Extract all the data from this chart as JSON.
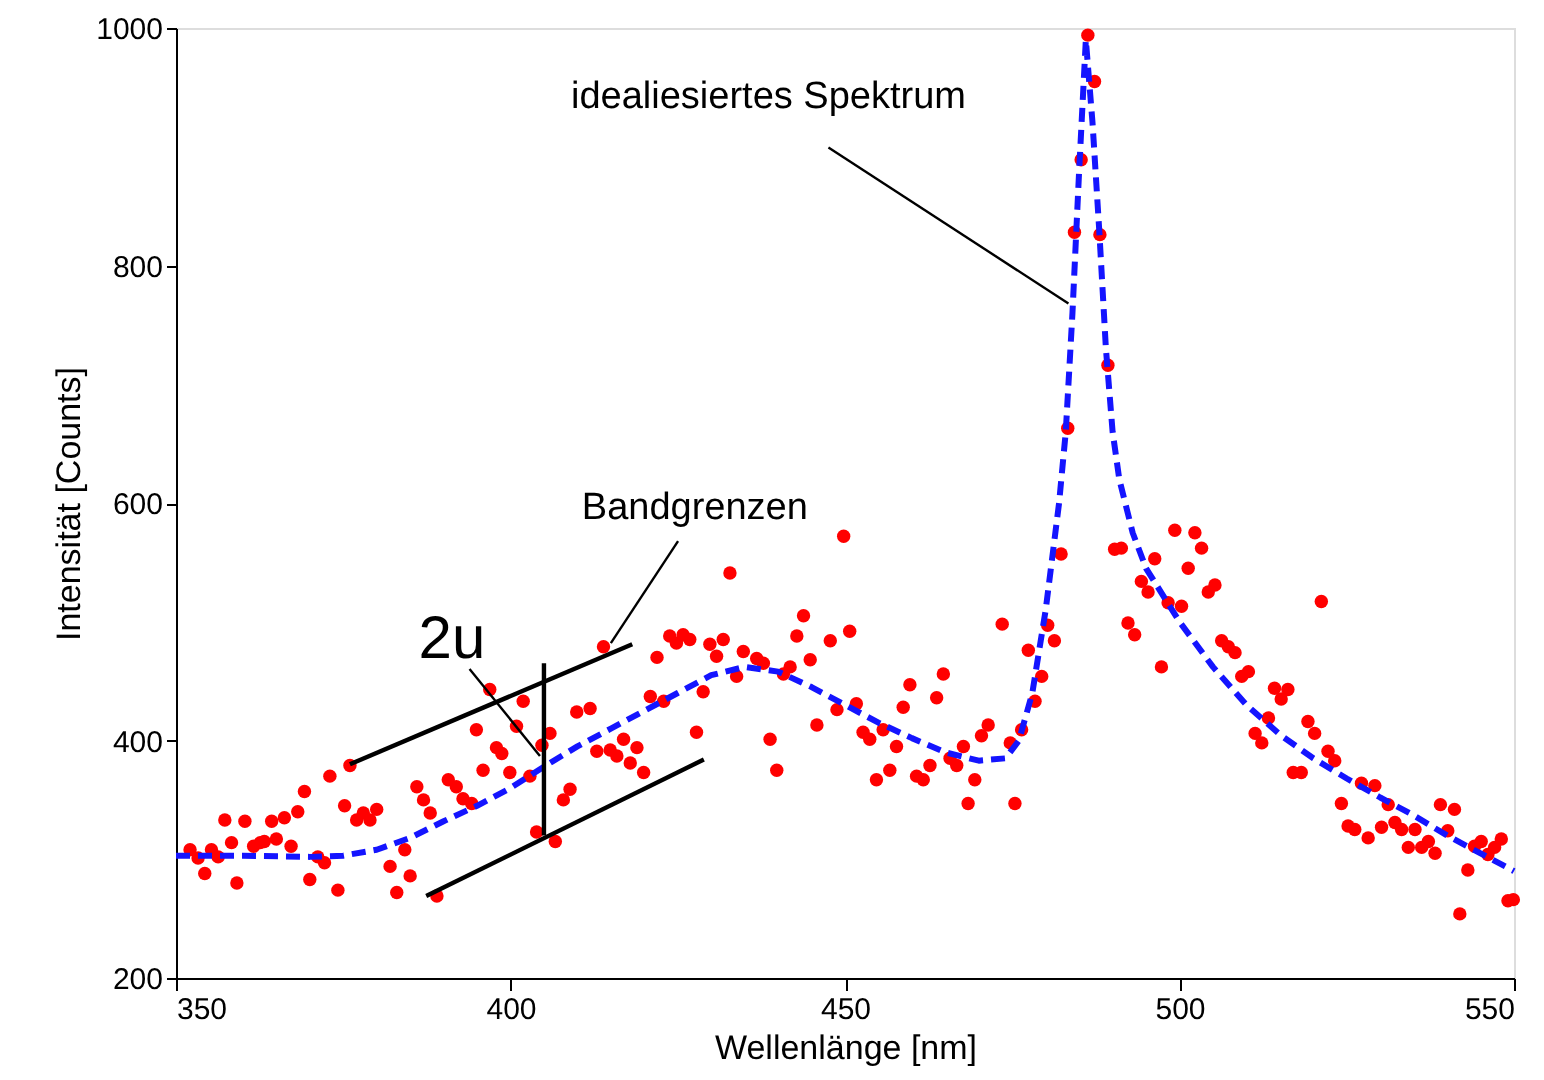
{
  "chart_data": {
    "type": "scatter",
    "xlabel": "Wellenlänge [nm]",
    "ylabel": "Intensität [Counts]",
    "xlim": [
      350,
      550
    ],
    "ylim": [
      200,
      1000
    ],
    "xticks": [
      350,
      400,
      450,
      500,
      550
    ],
    "yticks": [
      200,
      400,
      600,
      800,
      1000
    ],
    "series": [
      {
        "color": "#ff0000",
        "marker": "circle",
        "x": [
          352.1,
          353.3,
          354.3,
          355.3,
          356.3,
          357.3,
          358.3,
          359.1,
          360.3,
          361.6,
          362.6,
          363.2,
          364.3,
          365.0,
          366.2,
          367.2,
          368.2,
          369.2,
          370.0,
          371.2,
          372.2,
          373.0,
          374.2,
          375.2,
          376.0,
          377.0,
          378.0,
          379.0,
          380.0,
          382.0,
          383.0,
          384.2,
          385.0,
          386.0,
          387.0,
          388.0,
          389.0,
          390.7,
          391.9,
          392.9,
          394.2,
          394.9,
          395.9,
          396.9,
          397.9,
          398.7,
          399.9,
          400.9,
          401.9,
          402.9,
          403.9,
          404.7,
          405.9,
          406.7,
          407.9,
          408.9,
          409.9,
          411.9,
          412.9,
          413.9,
          414.9,
          415.9,
          416.9,
          417.9,
          418.9,
          419.9,
          420.9,
          421.9,
          422.9,
          423.8,
          424.8,
          425.8,
          426.8,
          427.8,
          428.8,
          429.8,
          430.8,
          431.8,
          432.8,
          433.8,
          434.8,
          436.8,
          437.8,
          438.8,
          439.8,
          440.8,
          441.8,
          442.8,
          443.8,
          444.8,
          445.8,
          447.8,
          448.8,
          449.8,
          450.7,
          451.7,
          452.7,
          453.7,
          454.7,
          455.7,
          456.7,
          457.7,
          458.7,
          459.7,
          460.7,
          461.7,
          462.7,
          463.7,
          464.7,
          465.7,
          466.7,
          467.7,
          468.4,
          469.4,
          470.4,
          471.4,
          473.5,
          474.7,
          475.4,
          476.4,
          477.4,
          478.4,
          479.4,
          480.3,
          481.3,
          482.3,
          483.3,
          484.3,
          485.3,
          486.3,
          487.3,
          488.1,
          489.3,
          490.3,
          491.3,
          492.3,
          493.3,
          494.3,
          495.3,
          496.3,
          497.3,
          498.3,
          499.3,
          500.3,
          501.3,
          502.3,
          503.3,
          504.3,
          505.3,
          506.3,
          507.3,
          508.3,
          509.3,
          510.3,
          511.3,
          512.3,
          513.3,
          514.2,
          515.2,
          516.2,
          517.0,
          518.2,
          519.2,
          520.2,
          521.2,
          522.2,
          523.2,
          524.2,
          525.2,
          526.2,
          527.2,
          528.2,
          529.2,
          530.2,
          531.2,
          532.2,
          533.2,
          534.2,
          535.2,
          536.2,
          537.2,
          538.2,
          539.0,
          540.1,
          541.1,
          541.9,
          543.1,
          544.1,
          545.1,
          546.1,
          547.1,
          548.1,
          549.1,
          549.9
        ],
        "values": [
          308,
          301,
          288,
          308,
          302,
          333,
          314,
          280,
          332,
          311,
          314,
          315,
          332,
          317,
          335,
          311,
          340,
          357,
          283,
          302,
          297,
          370,
          274,
          345,
          379,
          333,
          339,
          333,
          342,
          294,
          272,
          308,
          286,
          361,
          350,
          339,
          269,
          367,
          361,
          351,
          347,
          409,
          375,
          443,
          394,
          389,
          373,
          412,
          433,
          370,
          323,
          396,
          406,
          315,
          350,
          359,
          424,
          427,
          391,
          479,
          392,
          387,
          401,
          381,
          394,
          373,
          437,
          470,
          433,
          488,
          482,
          489,
          485,
          407,
          441,
          481,
          471,
          485,
          541,
          454,
          475,
          469,
          465,
          401,
          375,
          456,
          462,
          488,
          505,
          468,
          413,
          484,
          426,
          572,
          492,
          431,
          407,
          401,
          367,
          409,
          375,
          395,
          428,
          447,
          370,
          367,
          379,
          436,
          456,
          385,
          379,
          395,
          347,
          367,
          404,
          413,
          498,
          398,
          347,
          409,
          476,
          433,
          454,
          497,
          484,
          557,
          663,
          828,
          889,
          994,
          955,
          826,
          716,
          561,
          562,
          499,
          489,
          534,
          525,
          553,
          462,
          516,
          577,
          513,
          545,
          575,
          562,
          525,
          531,
          484,
          479,
          474,
          454,
          458,
          406,
          398,
          419,
          444,
          435,
          443,
          373,
          373,
          416,
          406,
          517,
          391,
          383,
          347,
          328,
          325,
          364,
          318,
          362,
          327,
          346,
          331,
          325,
          310,
          325,
          310,
          315,
          305,
          346,
          324,
          342,
          254,
          291,
          311,
          315,
          304,
          310,
          317,
          265,
          266
        ]
      },
      {
        "type": "line",
        "color": "#1414ff",
        "line_style": "dashed",
        "marker": "none",
        "x": [
          350,
          360,
          370,
          375,
          380,
          385,
          390,
          395,
          400,
          405,
          410,
          415,
          420,
          425,
          430,
          435,
          440,
          445,
          450,
          455,
          460,
          465,
          470,
          474,
          476,
          478,
          480,
          482,
          483,
          484,
          485,
          486,
          487,
          488,
          489,
          490,
          491,
          493,
          495,
          500,
          505,
          510,
          515,
          520,
          525,
          530,
          535,
          540,
          545,
          550
        ],
        "values": [
          303,
          303,
          302,
          303,
          308,
          318,
          332,
          345,
          360,
          378,
          395,
          410,
          425,
          440,
          455,
          462,
          458,
          445,
          430,
          415,
          402,
          390,
          383,
          385,
          400,
          440,
          510,
          600,
          660,
          760,
          880,
          990,
          920,
          830,
          730,
          660,
          620,
          575,
          545,
          500,
          462,
          430,
          405,
          385,
          368,
          352,
          337,
          320,
          305,
          290
        ]
      },
      {
        "type": "line",
        "color": "#000000",
        "line_style": "solid",
        "marker": "none",
        "x": [
          376.0,
          418.2
        ],
        "values": [
          380,
          481
        ]
      },
      {
        "type": "line",
        "color": "#000000",
        "line_style": "solid",
        "marker": "none",
        "x": [
          387.4,
          428.9
        ],
        "values": [
          269,
          384
        ]
      },
      {
        "type": "line",
        "color": "#000000",
        "line_style": "solid",
        "marker": "none",
        "x": [
          405,
          405
        ],
        "values": [
          320,
          465
        ]
      }
    ],
    "annotations": [
      {
        "text": "idealiesiertes Spektrum",
        "x": 483.4,
        "y": 768
      },
      {
        "text": "Bandgrenzen",
        "x": 415,
        "y": 482
      },
      {
        "text": "2u",
        "x": 404.4,
        "y": 387
      }
    ]
  }
}
